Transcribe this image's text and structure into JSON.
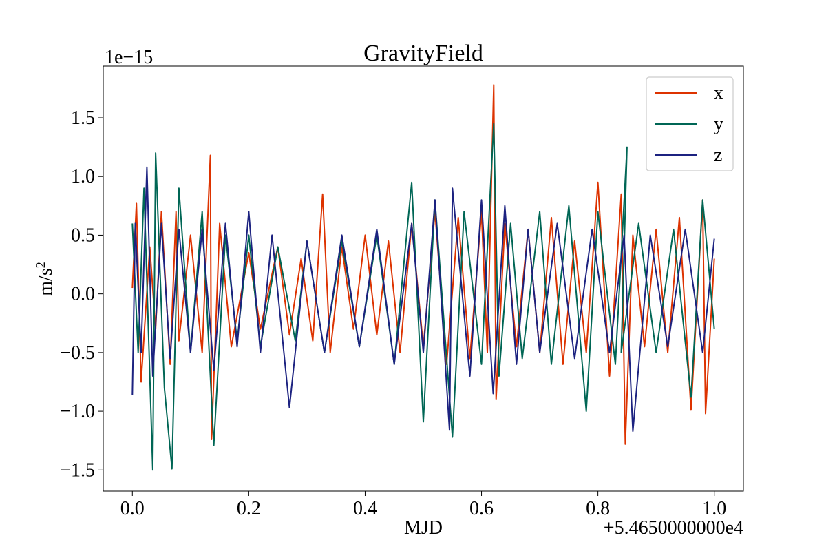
{
  "chart_data": {
    "type": "line",
    "title": "GravityField",
    "xlabel": "MJD",
    "ylabel_base": "m/s",
    "ylabel_exp": "2",
    "x_offset_label": "+5.4650000000e4",
    "y_scale_label": "1e−15",
    "xlim": [
      -0.05,
      1.05
    ],
    "ylim": [
      -1.68,
      1.94
    ],
    "x_ticks": [
      0.0,
      0.2,
      0.4,
      0.6,
      0.8,
      1.0
    ],
    "x_tick_labels": [
      "0.0",
      "0.2",
      "0.4",
      "0.6",
      "0.8",
      "1.0"
    ],
    "y_ticks": [
      1.5,
      1.0,
      0.5,
      0.0,
      -0.5,
      -1.0,
      -1.5
    ],
    "y_tick_labels": [
      "1.5",
      "1.0",
      "0.5",
      "0.0",
      "−0.5",
      "−1.0",
      "−1.5"
    ],
    "legend_position": "top-right",
    "grid": false,
    "series": [
      {
        "name": "x",
        "color": "#dd3300",
        "x": [
          0.0,
          0.007,
          0.015,
          0.03,
          0.04,
          0.05,
          0.065,
          0.075,
          0.08,
          0.1,
          0.12,
          0.134,
          0.136,
          0.15,
          0.17,
          0.2,
          0.22,
          0.25,
          0.27,
          0.29,
          0.31,
          0.327,
          0.34,
          0.36,
          0.38,
          0.4,
          0.42,
          0.44,
          0.46,
          0.48,
          0.5,
          0.52,
          0.54,
          0.56,
          0.58,
          0.6,
          0.61,
          0.621,
          0.625,
          0.64,
          0.66,
          0.68,
          0.7,
          0.72,
          0.74,
          0.76,
          0.78,
          0.8,
          0.82,
          0.84,
          0.847,
          0.86,
          0.88,
          0.9,
          0.92,
          0.94,
          0.96,
          0.98,
          0.985,
          1.0
        ],
        "y": [
          0.05,
          0.77,
          -0.75,
          0.4,
          -0.3,
          0.7,
          -0.6,
          0.7,
          -0.4,
          0.5,
          -0.5,
          1.18,
          -1.24,
          0.6,
          -0.45,
          0.35,
          -0.3,
          0.4,
          -0.35,
          0.3,
          -0.4,
          0.85,
          -0.5,
          0.4,
          -0.3,
          0.5,
          -0.35,
          0.45,
          -0.5,
          0.6,
          -0.45,
          0.7,
          -0.6,
          0.65,
          -0.55,
          0.7,
          -0.5,
          1.78,
          -0.9,
          0.6,
          -0.45,
          0.55,
          -0.5,
          0.65,
          -0.6,
          0.45,
          -0.5,
          0.95,
          -0.7,
          0.85,
          -1.28,
          0.5,
          -0.45,
          0.55,
          -0.5,
          0.65,
          -0.99,
          0.8,
          -1.02,
          0.3
        ]
      },
      {
        "name": "y",
        "color": "#006655",
        "x": [
          0.0,
          0.01,
          0.02,
          0.035,
          0.04,
          0.055,
          0.068,
          0.08,
          0.1,
          0.12,
          0.14,
          0.16,
          0.18,
          0.2,
          0.22,
          0.25,
          0.28,
          0.3,
          0.33,
          0.36,
          0.39,
          0.42,
          0.45,
          0.48,
          0.5,
          0.52,
          0.55,
          0.57,
          0.6,
          0.621,
          0.63,
          0.65,
          0.67,
          0.7,
          0.72,
          0.75,
          0.78,
          0.8,
          0.83,
          0.85,
          0.84,
          0.87,
          0.9,
          0.93,
          0.96,
          0.98,
          1.0
        ],
        "y": [
          0.6,
          -0.5,
          0.9,
          -1.5,
          1.2,
          -0.8,
          -1.49,
          0.9,
          -0.5,
          0.7,
          -1.29,
          0.5,
          -0.4,
          0.5,
          -0.45,
          0.4,
          -0.4,
          0.45,
          -0.5,
          0.45,
          -0.45,
          0.5,
          -0.6,
          0.95,
          -1.09,
          0.8,
          -1.22,
          0.7,
          -0.6,
          1.45,
          -0.7,
          0.6,
          -0.55,
          0.7,
          -0.6,
          0.75,
          -1.0,
          0.7,
          -0.6,
          1.25,
          -0.5,
          0.6,
          -0.5,
          0.55,
          -0.88,
          0.8,
          -0.3
        ]
      },
      {
        "name": "z",
        "color": "#1c2280",
        "x": [
          0.0,
          0.005,
          0.015,
          0.025,
          0.035,
          0.05,
          0.065,
          0.08,
          0.1,
          0.12,
          0.14,
          0.16,
          0.18,
          0.2,
          0.22,
          0.24,
          0.27,
          0.3,
          0.33,
          0.36,
          0.39,
          0.42,
          0.45,
          0.48,
          0.5,
          0.52,
          0.545,
          0.55,
          0.58,
          0.6,
          0.62,
          0.64,
          0.66,
          0.68,
          0.7,
          0.73,
          0.76,
          0.79,
          0.82,
          0.845,
          0.86,
          0.89,
          0.92,
          0.95,
          0.98,
          1.0
        ],
        "y": [
          -0.86,
          0.6,
          -0.5,
          1.08,
          -0.7,
          0.6,
          -0.55,
          0.55,
          -0.5,
          0.55,
          -0.65,
          0.6,
          -0.45,
          0.7,
          -0.5,
          0.5,
          -0.97,
          0.45,
          -0.5,
          0.5,
          -0.45,
          0.55,
          -0.6,
          0.6,
          -0.5,
          0.8,
          -1.16,
          0.9,
          -0.7,
          0.8,
          -0.85,
          0.75,
          -0.6,
          0.55,
          -0.5,
          0.6,
          -0.55,
          0.55,
          -0.5,
          0.5,
          -1.17,
          0.5,
          -0.45,
          0.55,
          -0.5,
          0.47
        ]
      }
    ]
  }
}
